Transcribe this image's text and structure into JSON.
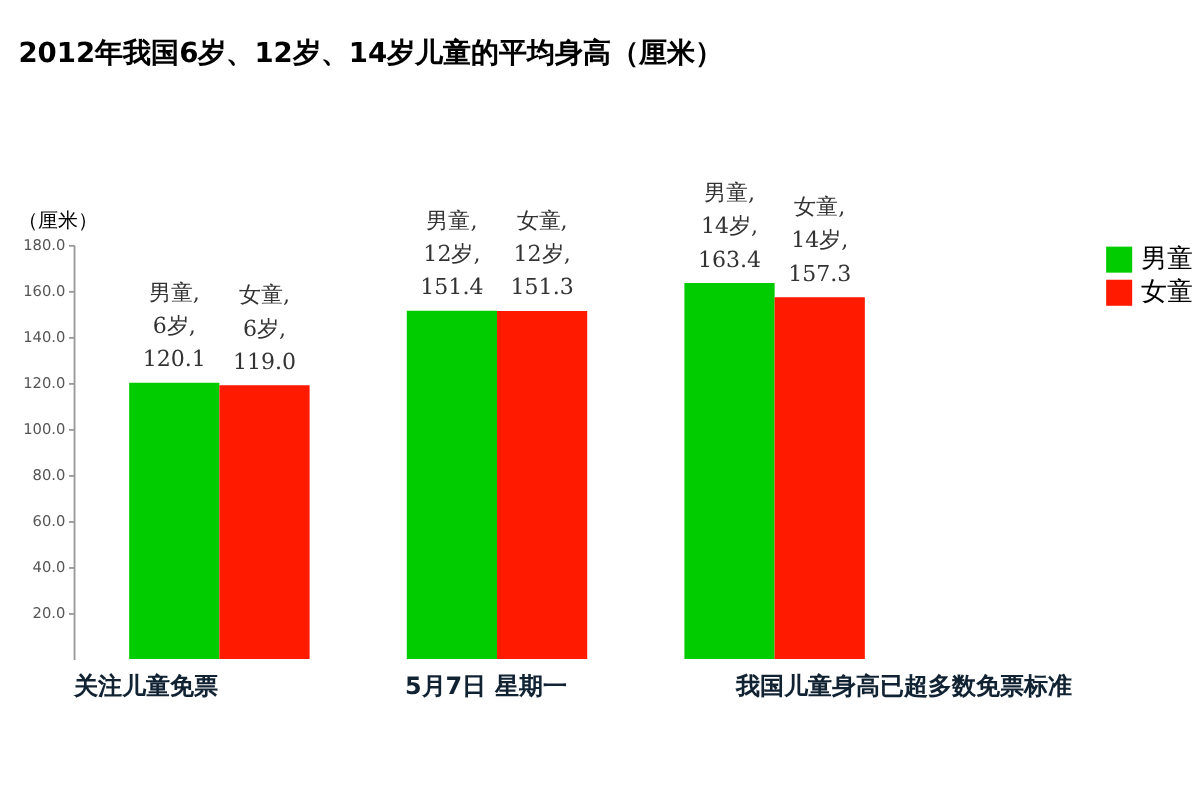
{
  "chart_data": {
    "type": "bar",
    "title": "2012年我国6岁、12岁、14岁儿童的平均身高（厘米）",
    "ylabel": "（厘米）",
    "categories": [
      null,
      null,
      null
    ],
    "series": [
      {
        "name": "男童",
        "color": "#00cc00",
        "values": [
          120.1,
          151.4,
          163.4
        ],
        "value_labels": [
          "男童, 6岁, 120.1",
          "男童, 12岁, 151.4",
          "男童, 14岁, 163.4"
        ]
      },
      {
        "name": "女童",
        "color": "#ff1a00",
        "values": [
          119.0,
          151.3,
          157.3
        ],
        "value_labels": [
          "女童, 6岁, 119.0",
          "女童, 12岁, 151.3",
          "女童, 14岁, 157.3"
        ]
      }
    ],
    "ylim": [
      0,
      180
    ],
    "yticks": [
      {
        "value": 20,
        "label": "20.0"
      },
      {
        "value": 40,
        "label": "40.0"
      },
      {
        "value": 60,
        "label": "60.0"
      },
      {
        "value": 80,
        "label": "80.0"
      },
      {
        "value": 100,
        "label": "100.0"
      },
      {
        "value": 120,
        "label": "120.0"
      },
      {
        "value": 140,
        "label": "140.0"
      },
      {
        "value": 160,
        "label": "160.0"
      },
      {
        "value": 180,
        "label": "180.0"
      }
    ],
    "tick_labels": "y",
    "grid": false,
    "legend": "right",
    "annotations": [
      "关注儿童免票",
      "5月7日 星期一",
      "我国儿童身高已超多数免票标准"
    ]
  }
}
